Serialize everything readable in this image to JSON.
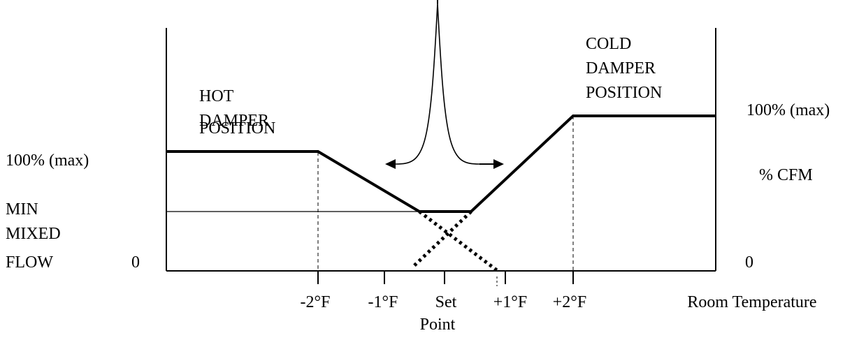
{
  "labels": {
    "hot_damper": [
      "HOT",
      "DAMPER",
      "POSITION"
    ],
    "cold_damper": [
      "COLD",
      "DAMPER",
      "POSITION"
    ],
    "left_max": "100% (max)",
    "right_max": "100% (max)",
    "right_unit": "% CFM",
    "min_mixed_flow": [
      "MIN",
      "MIXED",
      "FLOW"
    ],
    "left_zero": "0",
    "right_zero": "0",
    "x_ticks": [
      "-2°F",
      "-1°F",
      "Set",
      "+1°F",
      "+2°F"
    ],
    "set_point_second_line": "Point",
    "x_axis_title": "Room Temperature"
  },
  "colors": {
    "line": "#000000",
    "background": "#ffffff"
  }
}
